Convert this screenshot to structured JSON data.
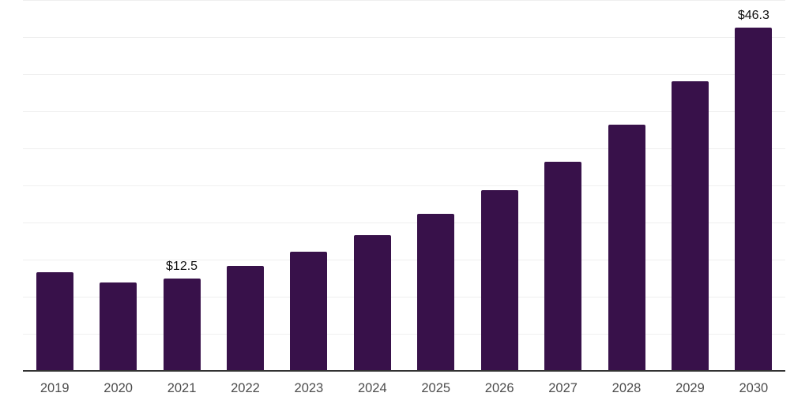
{
  "chart_data": {
    "type": "bar",
    "title": "",
    "xlabel": "",
    "ylabel": "",
    "categories": [
      "2019",
      "2020",
      "2021",
      "2022",
      "2023",
      "2024",
      "2025",
      "2026",
      "2027",
      "2028",
      "2029",
      "2030"
    ],
    "values": [
      13.3,
      11.9,
      12.5,
      14.2,
      16.1,
      18.3,
      21.2,
      24.4,
      28.2,
      33.2,
      39.0,
      46.3
    ],
    "data_labels": [
      "",
      "",
      "$12.5",
      "",
      "",
      "",
      "",
      "",
      "",
      "",
      "",
      "$46.3"
    ],
    "ylim": [
      0,
      50
    ],
    "grid_step": 5,
    "grid": "horizontal-only",
    "legend": "none",
    "y_tick_labels": "none",
    "colors": {
      "bar": "#38114A",
      "axis_line": "#333333",
      "gridline": "#efefef",
      "x_tick_label": "#4d4d4d",
      "data_label": "#0f0f0f",
      "background": "#ffffff"
    }
  }
}
